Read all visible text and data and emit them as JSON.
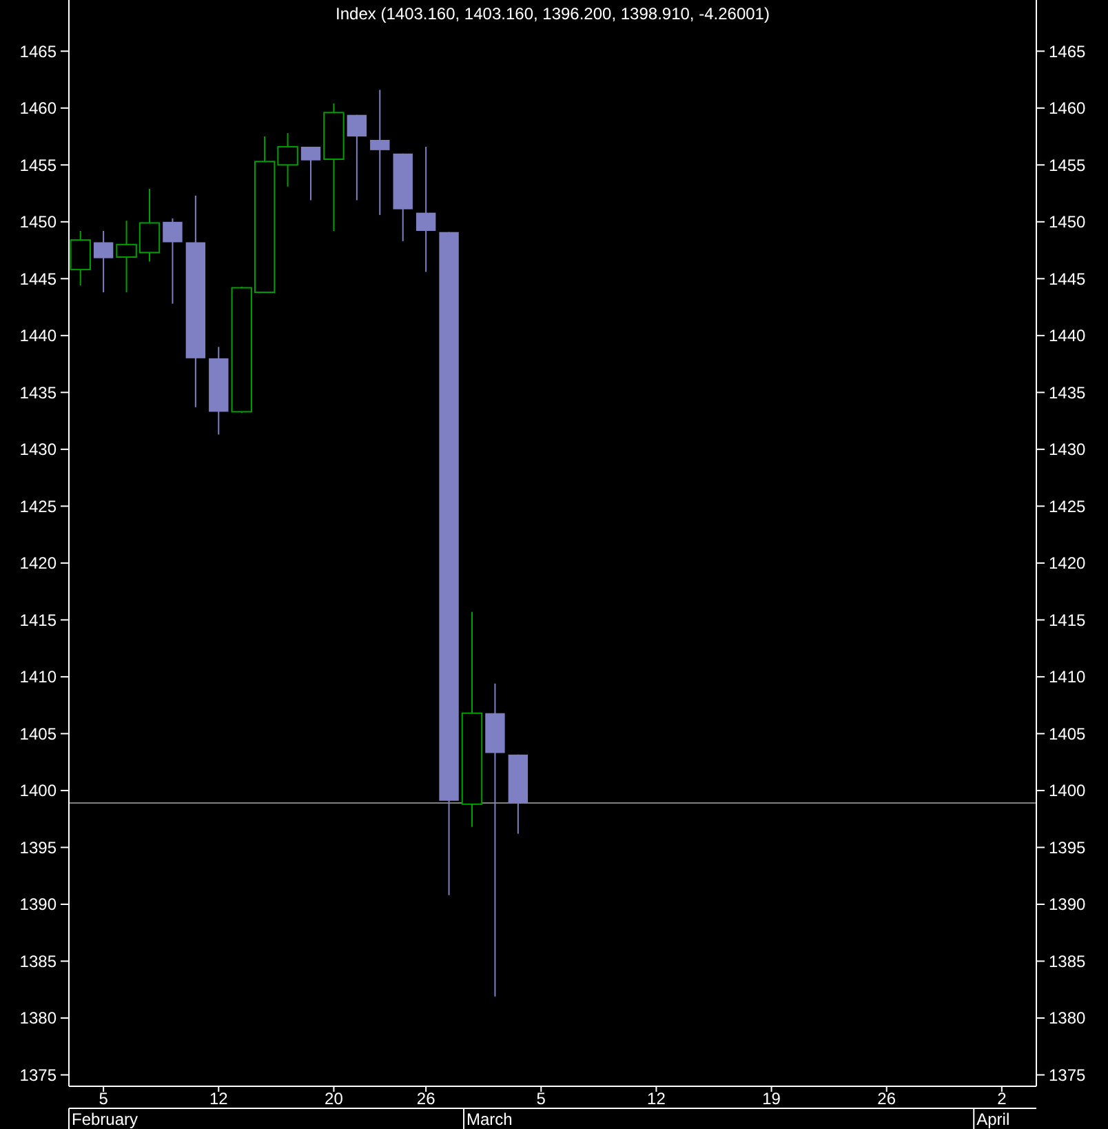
{
  "chart_data": {
    "type": "candlestick",
    "title": "Index (1403.160, 1403.160, 1396.200, 1398.910, -4.26001)",
    "categories": [
      null,
      "5",
      null,
      null,
      null,
      null,
      "12",
      null,
      null,
      null,
      null,
      "20",
      null,
      null,
      null,
      "26",
      null,
      null,
      null,
      null,
      "5",
      null,
      null,
      null,
      null,
      "12",
      null,
      null,
      null,
      null,
      "19",
      null,
      null,
      null,
      null,
      "26",
      null,
      null,
      null,
      null,
      "2",
      null
    ],
    "annotations": [
      "February",
      "March",
      "April"
    ],
    "ohlc": [
      [
        1445.8,
        1449.2,
        1444.4,
        1448.4
      ],
      [
        1448.2,
        1449.2,
        1443.8,
        1446.8
      ],
      [
        1446.9,
        1450.1,
        1443.8,
        1448.0
      ],
      [
        1447.3,
        1452.9,
        1446.5,
        1449.9
      ],
      [
        1450.0,
        1450.3,
        1442.8,
        1448.2
      ],
      [
        1448.2,
        1452.3,
        1433.7,
        1438.0
      ],
      [
        1438.0,
        1439.0,
        1431.3,
        1433.3
      ],
      [
        1433.3,
        1444.3,
        1433.2,
        1444.2
      ],
      [
        1443.8,
        1457.5,
        1443.8,
        1455.3
      ],
      [
        1455.0,
        1457.8,
        1453.1,
        1456.6
      ],
      [
        1456.6,
        1456.6,
        1451.9,
        1455.4
      ],
      [
        1455.5,
        1460.4,
        1449.2,
        1459.6
      ],
      [
        1459.4,
        1459.4,
        1451.9,
        1457.5
      ],
      [
        1457.2,
        1461.6,
        1450.6,
        1456.3
      ],
      [
        1456.0,
        1456.0,
        1448.3,
        1451.1
      ],
      [
        1450.8,
        1456.6,
        1445.6,
        1449.2
      ],
      [
        1449.1,
        1449.1,
        1390.8,
        1399.1
      ],
      [
        1398.8,
        1415.7,
        1396.8,
        1406.8
      ],
      [
        1406.8,
        1409.4,
        1381.9,
        1403.3
      ],
      [
        1403.16,
        1403.16,
        1396.2,
        1398.91
      ],
      null,
      null,
      null,
      null,
      null,
      null,
      null,
      null,
      null,
      null,
      null,
      null,
      null,
      null,
      null,
      null,
      null,
      null,
      null,
      null,
      null,
      null
    ],
    "colors": [
      "#00a000",
      "#7f7fc4",
      "#00a000",
      "#00a000",
      "#7f7fc4",
      "#7f7fc4",
      "#7f7fc4",
      "#00a000",
      "#00a000",
      "#00a000",
      "#7f7fc4",
      "#00a000",
      "#7f7fc4",
      "#7f7fc4",
      "#7f7fc4",
      "#7f7fc4",
      "#7f7fc4",
      "#00a000",
      "#7f7fc4",
      "#7f7fc4",
      null,
      null,
      null,
      null,
      null,
      null,
      null,
      null,
      null,
      null,
      null,
      null,
      null,
      null,
      null,
      null,
      null,
      null,
      null,
      null,
      null,
      null
    ],
    "ylim": [
      1374,
      1469.5
    ],
    "yticks": [
      1375,
      1380,
      1385,
      1390,
      1395,
      1400,
      1405,
      1410,
      1415,
      1420,
      1425,
      1430,
      1435,
      1440,
      1445,
      1450,
      1455,
      1460,
      1465
    ],
    "y2lim": [
      1374,
      1469.5
    ],
    "y2ticks": [
      1375,
      1380,
      1385,
      1390,
      1395,
      1400,
      1405,
      1410,
      1415,
      1420,
      1425,
      1430,
      1435,
      1440,
      1445,
      1450,
      1455,
      1460,
      1465
    ],
    "ref_lines": [
      {
        "axis": "y",
        "value": 1398.91,
        "color": "#808080"
      }
    ],
    "grid": false
  }
}
